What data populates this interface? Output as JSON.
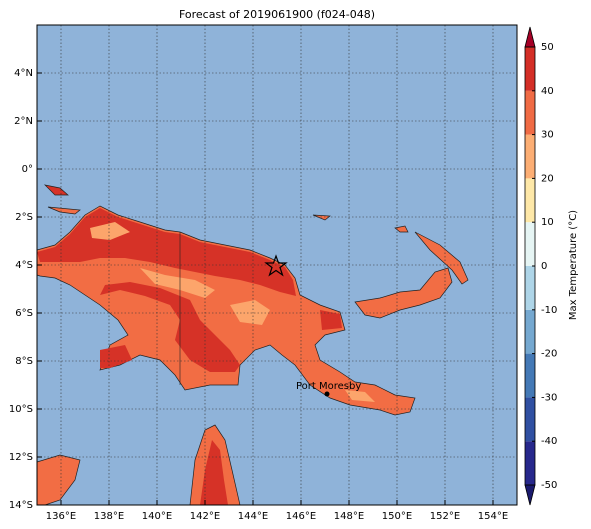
{
  "map": {
    "title": "Forecast of 2019061900 (f024-048)",
    "xlim": [
      135,
      155
    ],
    "ylim": [
      -14,
      6
    ],
    "xticks": [
      {
        "value": 136,
        "label": "136°E"
      },
      {
        "value": 138,
        "label": "138°E"
      },
      {
        "value": 140,
        "label": "140°E"
      },
      {
        "value": 142,
        "label": "142°E"
      },
      {
        "value": 144,
        "label": "144°E"
      },
      {
        "value": 146,
        "label": "146°E"
      },
      {
        "value": 148,
        "label": "148°E"
      },
      {
        "value": 150,
        "label": "150°E"
      },
      {
        "value": 152,
        "label": "152°E"
      },
      {
        "value": 154,
        "label": "154°E"
      }
    ],
    "yticks": [
      {
        "value": 4,
        "label": "4°N"
      },
      {
        "value": 2,
        "label": "2°N"
      },
      {
        "value": 0,
        "label": "0°"
      },
      {
        "value": -2,
        "label": "2°S"
      },
      {
        "value": -4,
        "label": "4°S"
      },
      {
        "value": -6,
        "label": "6°S"
      },
      {
        "value": -8,
        "label": "8°S"
      },
      {
        "value": -10,
        "label": "10°S"
      },
      {
        "value": -12,
        "label": "12°S"
      },
      {
        "value": -14,
        "label": "14°S"
      }
    ],
    "grid": true,
    "colorbar": {
      "label": "Max Temperature (°C)",
      "ticks": [
        -50,
        -40,
        -30,
        -20,
        -10,
        0,
        10,
        20,
        30,
        40,
        50
      ],
      "colors": [
        "#27288c",
        "#3050a2",
        "#4479b6",
        "#75a8d0",
        "#aed5e8",
        "#e6f5f4",
        "#fee8a8",
        "#fcae74",
        "#f06b45",
        "#d42f27"
      ],
      "under_color": "#1a1a6e",
      "over_color": "#a50026"
    },
    "places": [
      {
        "label": "Port Moresby"
      }
    ]
  }
}
